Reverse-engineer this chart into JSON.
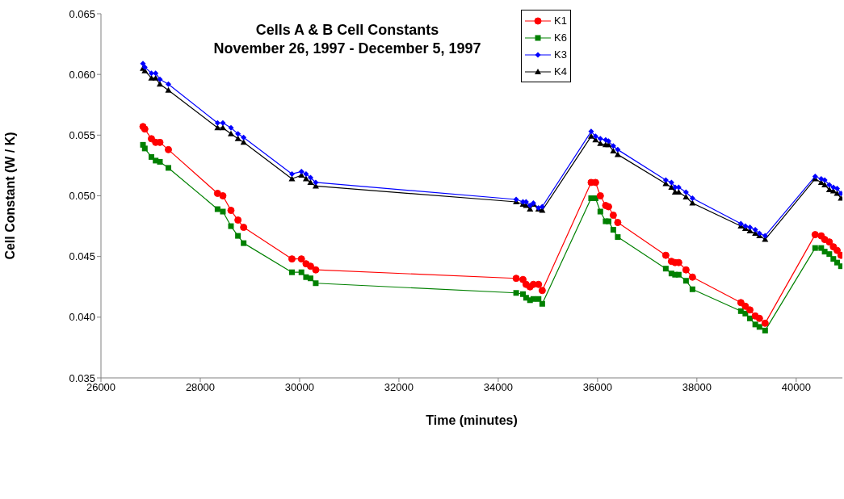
{
  "chart_data": {
    "type": "line",
    "title": "Cells A & B Cell Constants",
    "subtitle": "November 26, 1997 - December 5, 1997",
    "xlabel": "Time (minutes)",
    "ylabel": "Cell Constant (W / K)",
    "x": [
      26846,
      26883,
      27016,
      27101,
      27187,
      27358,
      28348,
      28455,
      28618,
      28759,
      28873,
      29846,
      30037,
      30130,
      30220,
      30325,
      34361,
      34498,
      34561,
      34640,
      34707,
      34811,
      34886,
      35871,
      35959,
      36056,
      36163,
      36221,
      36317,
      36407,
      37374,
      37488,
      37561,
      37634,
      37781,
      37911,
      38886,
      38976,
      39068,
      39176,
      39260,
      39374,
      40382,
      40504,
      40574,
      40667,
      40748,
      40824,
      40902
    ],
    "series": [
      {
        "name": "K1",
        "color": "#ff0000",
        "marker": "circle",
        "values": [
          0.0557,
          0.0555,
          0.0547,
          0.0544,
          0.0544,
          0.0538,
          0.0502,
          0.05,
          0.0488,
          0.048,
          0.0474,
          0.0448,
          0.0448,
          0.0444,
          0.0442,
          0.0439,
          0.0432,
          0.0431,
          0.0427,
          0.0425,
          0.0427,
          0.0427,
          0.0422,
          0.0511,
          0.0511,
          0.05,
          0.0492,
          0.0491,
          0.0484,
          0.0478,
          0.0451,
          0.0446,
          0.0445,
          0.0445,
          0.0439,
          0.0433,
          0.0412,
          0.0409,
          0.0406,
          0.0401,
          0.0399,
          0.0395,
          0.0468,
          0.0467,
          0.0464,
          0.0462,
          0.0458,
          0.0455,
          0.0451
        ]
      },
      {
        "name": "K6",
        "color": "#008000",
        "marker": "square",
        "values": [
          0.0542,
          0.0539,
          0.0532,
          0.0529,
          0.0528,
          0.0523,
          0.0489,
          0.0487,
          0.0475,
          0.0467,
          0.0461,
          0.0437,
          0.0437,
          0.0433,
          0.0432,
          0.0428,
          0.042,
          0.0419,
          0.0416,
          0.0414,
          0.0415,
          0.0415,
          0.0411,
          0.0498,
          0.0498,
          0.0487,
          0.0479,
          0.0479,
          0.0472,
          0.0466,
          0.044,
          0.0436,
          0.0435,
          0.0435,
          0.043,
          0.0423,
          0.0405,
          0.0403,
          0.0399,
          0.0394,
          0.0392,
          0.0389,
          0.0457,
          0.0457,
          0.0454,
          0.0452,
          0.0448,
          0.0445,
          0.0442
        ]
      },
      {
        "name": "K3",
        "color": "#0000ff",
        "marker": "diamond",
        "values": [
          0.0609,
          0.0606,
          0.0601,
          0.0601,
          0.0596,
          0.0592,
          0.056,
          0.056,
          0.0556,
          0.0551,
          0.0548,
          0.0518,
          0.052,
          0.0518,
          0.0515,
          0.0511,
          0.0497,
          0.0495,
          0.0495,
          0.0492,
          0.0494,
          0.049,
          0.0491,
          0.0553,
          0.0549,
          0.0547,
          0.0546,
          0.0545,
          0.0541,
          0.0538,
          0.0513,
          0.0511,
          0.0507,
          0.0507,
          0.0503,
          0.0498,
          0.0477,
          0.0475,
          0.0474,
          0.0472,
          0.0469,
          0.0467,
          0.0516,
          0.0514,
          0.0513,
          0.0509,
          0.0507,
          0.0506,
          0.0502
        ]
      },
      {
        "name": "K4",
        "color": "#000000",
        "marker": "triangle",
        "values": [
          0.0605,
          0.0603,
          0.0597,
          0.0597,
          0.0592,
          0.0587,
          0.0556,
          0.0556,
          0.0551,
          0.0547,
          0.0544,
          0.0514,
          0.0517,
          0.0514,
          0.0511,
          0.0508,
          0.0495,
          0.0493,
          0.0492,
          0.0489,
          0.0493,
          0.0489,
          0.0488,
          0.0549,
          0.0546,
          0.0543,
          0.0542,
          0.0542,
          0.0537,
          0.0534,
          0.051,
          0.0507,
          0.0503,
          0.0503,
          0.0499,
          0.0494,
          0.0475,
          0.0473,
          0.0471,
          0.0469,
          0.0467,
          0.0464,
          0.0514,
          0.0511,
          0.0509,
          0.0505,
          0.0504,
          0.0502,
          0.0498
        ]
      }
    ],
    "xlim": [
      26000,
      40930
    ],
    "xticks": [
      26000,
      28000,
      30000,
      32000,
      34000,
      36000,
      38000,
      40000
    ],
    "ylim": [
      0.035,
      0.065
    ],
    "yticks": [
      0.035,
      {
        "value": 0.04,
        "label": "0.040"
      },
      0.045,
      {
        "value": 0.05,
        "label": "0.050"
      },
      0.055,
      {
        "value": 0.06,
        "label": "0.060"
      },
      0.065
    ],
    "legend": "top",
    "line_style": "solid",
    "grid": false
  }
}
